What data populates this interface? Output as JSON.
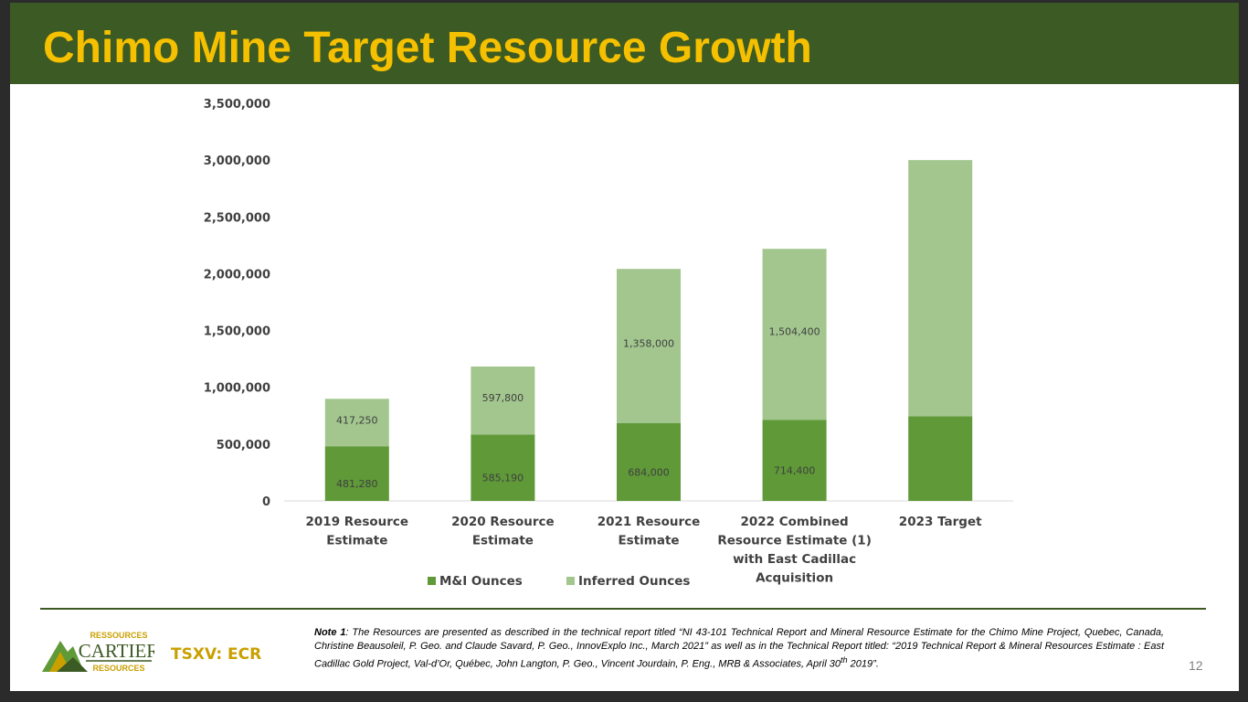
{
  "slide": {
    "title": "Chimo Mine Target Resource Growth",
    "page_number": "12"
  },
  "footer": {
    "logo_text_top": "RESSOURCES",
    "logo_text_main": "CARTIER",
    "logo_text_bottom": "RESOURCES",
    "ticker": "TSXV: ECR",
    "note_label": "Note 1",
    "note_text": ": The Resources are presented as described in the technical report titled “NI 43-101 Technical Report and Mineral Resource Estimate for the Chimo Mine Project, Quebec, Canada, Christine Beausoleil, P. Geo. and Claude Savard, P. Geo., InnovExplo Inc., March 2021” as well as in the Technical Report titled: “2019 Technical Report & Mineral Resources Estimate : East Cadillac Gold Project, Val-d’Or, Québec, John Langton, P. Geo., Vincent Jourdain, P. Eng., MRB & Associates, April 30",
    "note_sup": "th",
    "note_end": " 2019”.",
    "colors": {
      "header": "#3c5a23",
      "title": "#f5c000",
      "ticker": "#c9a000"
    }
  },
  "chart_data": {
    "type": "bar",
    "stacked": true,
    "categories": [
      [
        "2019 Resource",
        "Estimate"
      ],
      [
        "2020 Resource",
        "Estimate"
      ],
      [
        "2021 Resource",
        "Estimate"
      ],
      [
        "2022 Combined",
        "Resource Estimate (1)",
        "with East Cadillac",
        "Acquisition"
      ],
      [
        "2023 Target"
      ]
    ],
    "series": [
      {
        "name": "M&I Ounces",
        "color": "#5f9938",
        "values": [
          481280,
          585190,
          684000,
          714400,
          745000
        ],
        "labels": [
          "481,280",
          "585,190",
          "684,000",
          "714,400",
          ""
        ]
      },
      {
        "name": "Inferred Ounces",
        "color": "#a2c68e",
        "values": [
          417250,
          597800,
          1358000,
          1504400,
          2255000
        ],
        "labels": [
          "417,250",
          "597,800",
          "1,358,000",
          "1,504,400",
          ""
        ]
      }
    ],
    "ylim": [
      0,
      3500000
    ],
    "yticks": [
      0,
      500000,
      1000000,
      1500000,
      2000000,
      2500000,
      3000000,
      3500000
    ],
    "ytick_labels": [
      "0",
      "500,000",
      "1,000,000",
      "1,500,000",
      "2,000,000",
      "2,500,000",
      "3,000,000",
      "3,500,000"
    ],
    "grid": false,
    "legend": "bottom",
    "xlabel": "",
    "ylabel": ""
  }
}
